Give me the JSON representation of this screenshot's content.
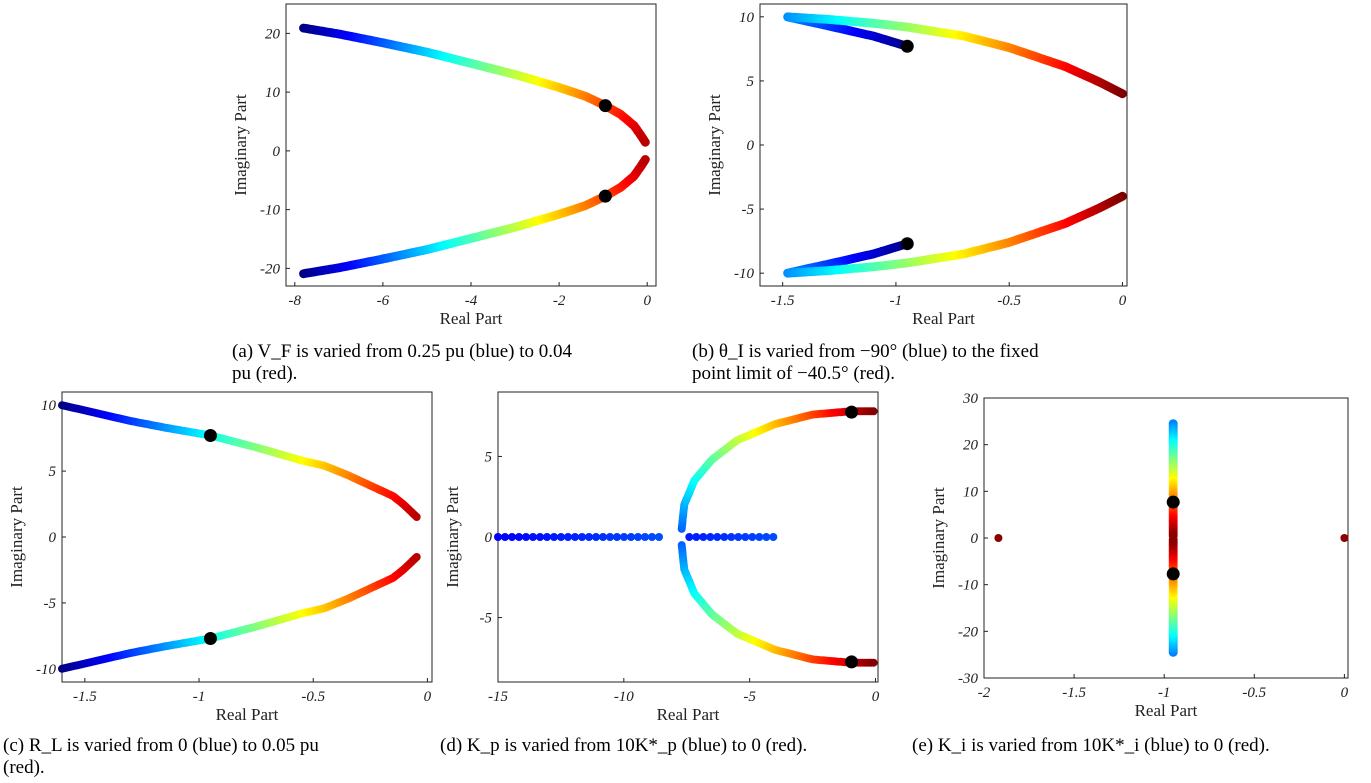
{
  "chart_data": [
    {
      "type": "scatter",
      "panel": "a",
      "xlabel": "Real Part",
      "ylabel": "Imaginary Part",
      "xlim": [
        -8.2,
        0.2
      ],
      "ylim": [
        -23,
        25
      ],
      "xticks": [
        -8,
        -6,
        -4,
        -2,
        0
      ],
      "yticks": [
        -20,
        -10,
        0,
        10,
        20
      ],
      "colormap": "jet (blue to dark red)",
      "series": [
        {
          "points": [
            [
              -7.8,
              20.9
            ],
            [
              -7,
              19.9
            ],
            [
              -6,
              18.4
            ],
            [
              -5,
              16.8
            ],
            [
              -4,
              14.9
            ],
            [
              -3,
              13
            ],
            [
              -2,
              10.8
            ],
            [
              -1.4,
              9.3
            ],
            [
              -0.95,
              7.7
            ],
            [
              -0.6,
              6.2
            ],
            [
              -0.3,
              4.3
            ],
            [
              -0.15,
              2.7
            ],
            [
              -0.02,
              1.2
            ]
          ]
        },
        {
          "points": [
            [
              -7.8,
              -20.9
            ],
            [
              -7,
              -19.9
            ],
            [
              -6,
              -18.4
            ],
            [
              -5,
              -16.8
            ],
            [
              -4,
              -14.9
            ],
            [
              -3,
              -13
            ],
            [
              -2,
              -10.8
            ],
            [
              -1.4,
              -9.3
            ],
            [
              -0.95,
              -7.7
            ],
            [
              -0.6,
              -6.2
            ],
            [
              -0.3,
              -4.3
            ],
            [
              -0.15,
              -2.7
            ],
            [
              -0.02,
              -1.2
            ]
          ]
        }
      ],
      "markers": [
        [
          -0.95,
          7.7
        ],
        [
          -0.95,
          -7.7
        ]
      ]
    },
    {
      "type": "scatter",
      "panel": "b",
      "xlabel": "Real Part",
      "ylabel": "Imaginary Part",
      "xlim": [
        -1.6,
        0.02
      ],
      "ylim": [
        -11,
        11
      ],
      "xticks": [
        -1.5,
        -1,
        -0.5,
        0
      ],
      "yticks": [
        -10,
        -5,
        0,
        5,
        10
      ],
      "colormap": "jet (blue to dark red)",
      "series": [
        {
          "points": [
            [
              -0.95,
              7.7
            ],
            [
              -1.1,
              8.5
            ],
            [
              -1.3,
              9.3
            ],
            [
              -1.48,
              10
            ],
            [
              -1.3,
              9.8
            ],
            [
              -1.1,
              9.5
            ],
            [
              -0.95,
              9.2
            ],
            [
              -0.7,
              8.5
            ],
            [
              -0.5,
              7.6
            ],
            [
              -0.25,
              6.1
            ],
            [
              -0.1,
              4.9
            ],
            [
              0,
              4
            ]
          ]
        },
        {
          "points": [
            [
              -0.95,
              -7.7
            ],
            [
              -1.1,
              -8.5
            ],
            [
              -1.3,
              -9.3
            ],
            [
              -1.48,
              -10
            ],
            [
              -1.3,
              -9.8
            ],
            [
              -1.1,
              -9.5
            ],
            [
              -0.95,
              -9.2
            ],
            [
              -0.7,
              -8.5
            ],
            [
              -0.5,
              -7.6
            ],
            [
              -0.25,
              -6.1
            ],
            [
              -0.1,
              -4.9
            ],
            [
              0,
              -4
            ]
          ]
        }
      ],
      "markers": [
        [
          -0.95,
          7.7
        ],
        [
          -0.95,
          -7.7
        ]
      ]
    },
    {
      "type": "scatter",
      "panel": "c",
      "xlabel": "Real Part",
      "ylabel": "Imaginary Part",
      "xlim": [
        -1.6,
        0.02
      ],
      "ylim": [
        -11,
        11
      ],
      "xticks": [
        -1.5,
        -1,
        -0.5,
        0
      ],
      "yticks": [
        -10,
        -5,
        0,
        5,
        10
      ],
      "colormap": "jet (blue to dark red)",
      "series": [
        {
          "points": [
            [
              -1.6,
              10
            ],
            [
              -1.45,
              9.4
            ],
            [
              -1.3,
              8.8
            ],
            [
              -1.15,
              8.3
            ],
            [
              -0.95,
              7.7
            ],
            [
              -0.75,
              6.8
            ],
            [
              -0.55,
              5.8
            ],
            [
              -0.45,
              5.4
            ],
            [
              -0.35,
              4.7
            ],
            [
              -0.25,
              3.9
            ],
            [
              -0.15,
              3.1
            ],
            [
              -0.1,
              2.4
            ],
            [
              -0.04,
              1.4
            ]
          ]
        },
        {
          "points": [
            [
              -1.6,
              -10
            ],
            [
              -1.45,
              -9.4
            ],
            [
              -1.3,
              -8.8
            ],
            [
              -1.15,
              -8.3
            ],
            [
              -0.95,
              -7.7
            ],
            [
              -0.75,
              -6.8
            ],
            [
              -0.55,
              -5.8
            ],
            [
              -0.45,
              -5.4
            ],
            [
              -0.35,
              -4.7
            ],
            [
              -0.25,
              -3.9
            ],
            [
              -0.15,
              -3.1
            ],
            [
              -0.1,
              -2.4
            ],
            [
              -0.04,
              -1.4
            ]
          ]
        }
      ],
      "markers": [
        [
          -0.95,
          7.7
        ],
        [
          -0.95,
          -7.7
        ]
      ]
    },
    {
      "type": "scatter",
      "panel": "d",
      "xlabel": "Real Part",
      "ylabel": "Imaginary Part",
      "xlim": [
        -15,
        0.1
      ],
      "ylim": [
        -9,
        9
      ],
      "xticks": [
        -15,
        -10,
        -5,
        0
      ],
      "yticks": [
        -5,
        0,
        5
      ],
      "colormap": "jet (blue to dark red)",
      "series": [
        {
          "points": [
            [
              -15,
              0
            ],
            [
              -12,
              0
            ],
            [
              -10,
              0
            ],
            [
              -8.6,
              0
            ]
          ]
        },
        {
          "points": [
            [
              -7.4,
              0
            ],
            [
              -6,
              0
            ],
            [
              -4,
              0
            ]
          ]
        },
        {
          "points": [
            [
              -7.7,
              0.5
            ],
            [
              -7.6,
              2
            ],
            [
              -7.2,
              3.5
            ],
            [
              -6.5,
              4.8
            ],
            [
              -5.5,
              6
            ],
            [
              -4,
              7
            ],
            [
              -2.5,
              7.6
            ],
            [
              -1,
              7.8
            ],
            [
              0,
              7.8
            ]
          ]
        },
        {
          "points": [
            [
              -7.7,
              -0.5
            ],
            [
              -7.6,
              -2
            ],
            [
              -7.2,
              -3.5
            ],
            [
              -6.5,
              -4.8
            ],
            [
              -5.5,
              -6
            ],
            [
              -4,
              -7
            ],
            [
              -2.5,
              -7.6
            ],
            [
              -1,
              -7.8
            ],
            [
              0,
              -7.8
            ]
          ]
        }
      ],
      "markers": [
        [
          -0.95,
          7.75
        ],
        [
          -0.95,
          -7.75
        ]
      ]
    },
    {
      "type": "scatter",
      "panel": "e",
      "xlabel": "Real Part",
      "ylabel": "Imaginary Part",
      "xlim": [
        -2,
        0.02
      ],
      "ylim": [
        -30,
        30
      ],
      "xticks": [
        -2,
        -1.5,
        -1,
        -0.5,
        0
      ],
      "yticks": [
        -30,
        -20,
        -10,
        0,
        10,
        20,
        30
      ],
      "colormap": "jet (blue at ends to dark red at center)",
      "series": [
        {
          "points": [
            [
              -0.95,
              24.5
            ],
            [
              -0.95,
              0
            ]
          ]
        },
        {
          "points": [
            [
              -0.95,
              -24.5
            ],
            [
              -0.95,
              0
            ]
          ]
        }
      ],
      "isolated_points": [
        [
          -1.92,
          0
        ],
        [
          0,
          0
        ]
      ],
      "markers": [
        [
          -0.95,
          7.7
        ],
        [
          -0.95,
          -7.7
        ]
      ]
    }
  ],
  "captions": {
    "a": [
      "(a) V_F is varied from 0.25 pu (blue) to 0.04",
      "pu (red)."
    ],
    "b": [
      "(b) θ_I is varied from −90° (blue) to the fixed",
      "point limit of −40.5° (red)."
    ],
    "c": [
      "(c) R_L is varied from 0 (blue) to 0.05 pu",
      "(red)."
    ],
    "d": [
      "(d) K_p is varied from 10K*_p (blue) to 0 (red)."
    ],
    "e": [
      "(e) K_i is varied from 10K*_i (blue) to 0 (red)."
    ]
  }
}
